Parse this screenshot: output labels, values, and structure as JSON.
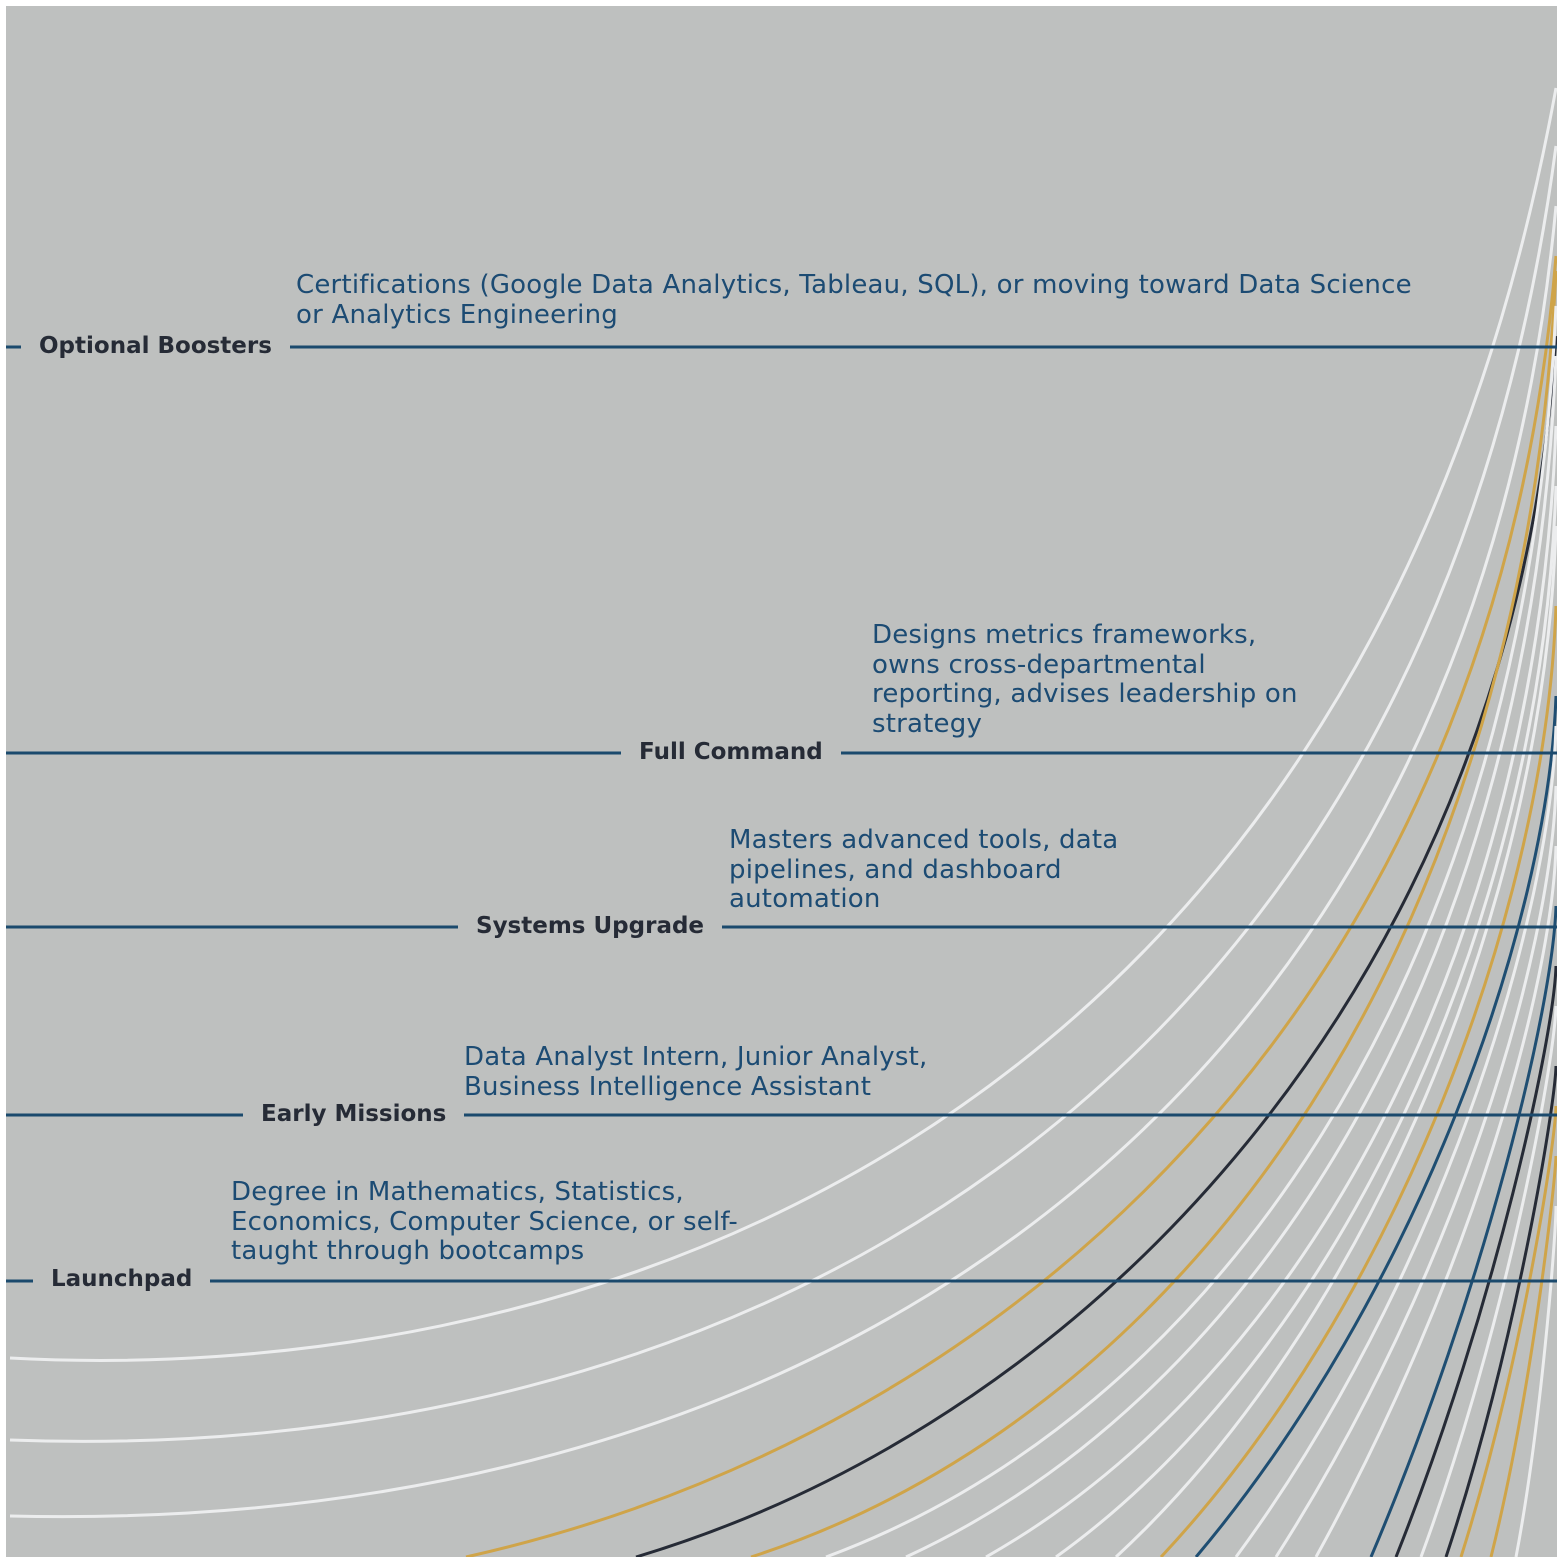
{
  "colors": {
    "background": "#bec0bf",
    "stage_line": "#1b4a6d",
    "label_text": "#262b36",
    "description_text": "#1c4b73",
    "curve_white": "#ecedee",
    "curve_gold": "#cfa449",
    "curve_navy": "#262b36",
    "curve_blue": "#1f4e72"
  },
  "stages": [
    {
      "id": "optional-boosters",
      "label": "Optional Boosters",
      "description": "Certifications (Google Data Analytics, Tableau, SQL), or moving toward Data Science or Analytics Engineering"
    },
    {
      "id": "full-command",
      "label": "Full Command",
      "description": "Designs metrics frameworks, owns cross-departmental reporting, advises leadership on strategy"
    },
    {
      "id": "systems-upgrade",
      "label": "Systems Upgrade",
      "description": "Masters advanced tools, data pipelines, and dashboard automation"
    },
    {
      "id": "early-missions",
      "label": "Early Missions",
      "description": "Data Analyst Intern, Junior Analyst, Business Intelligence Assistant"
    },
    {
      "id": "launchpad",
      "label": "Launchpad",
      "description": "Degree in Mathematics, Statistics, Economics, Computer Science, or self-taught through bootcamps"
    }
  ]
}
